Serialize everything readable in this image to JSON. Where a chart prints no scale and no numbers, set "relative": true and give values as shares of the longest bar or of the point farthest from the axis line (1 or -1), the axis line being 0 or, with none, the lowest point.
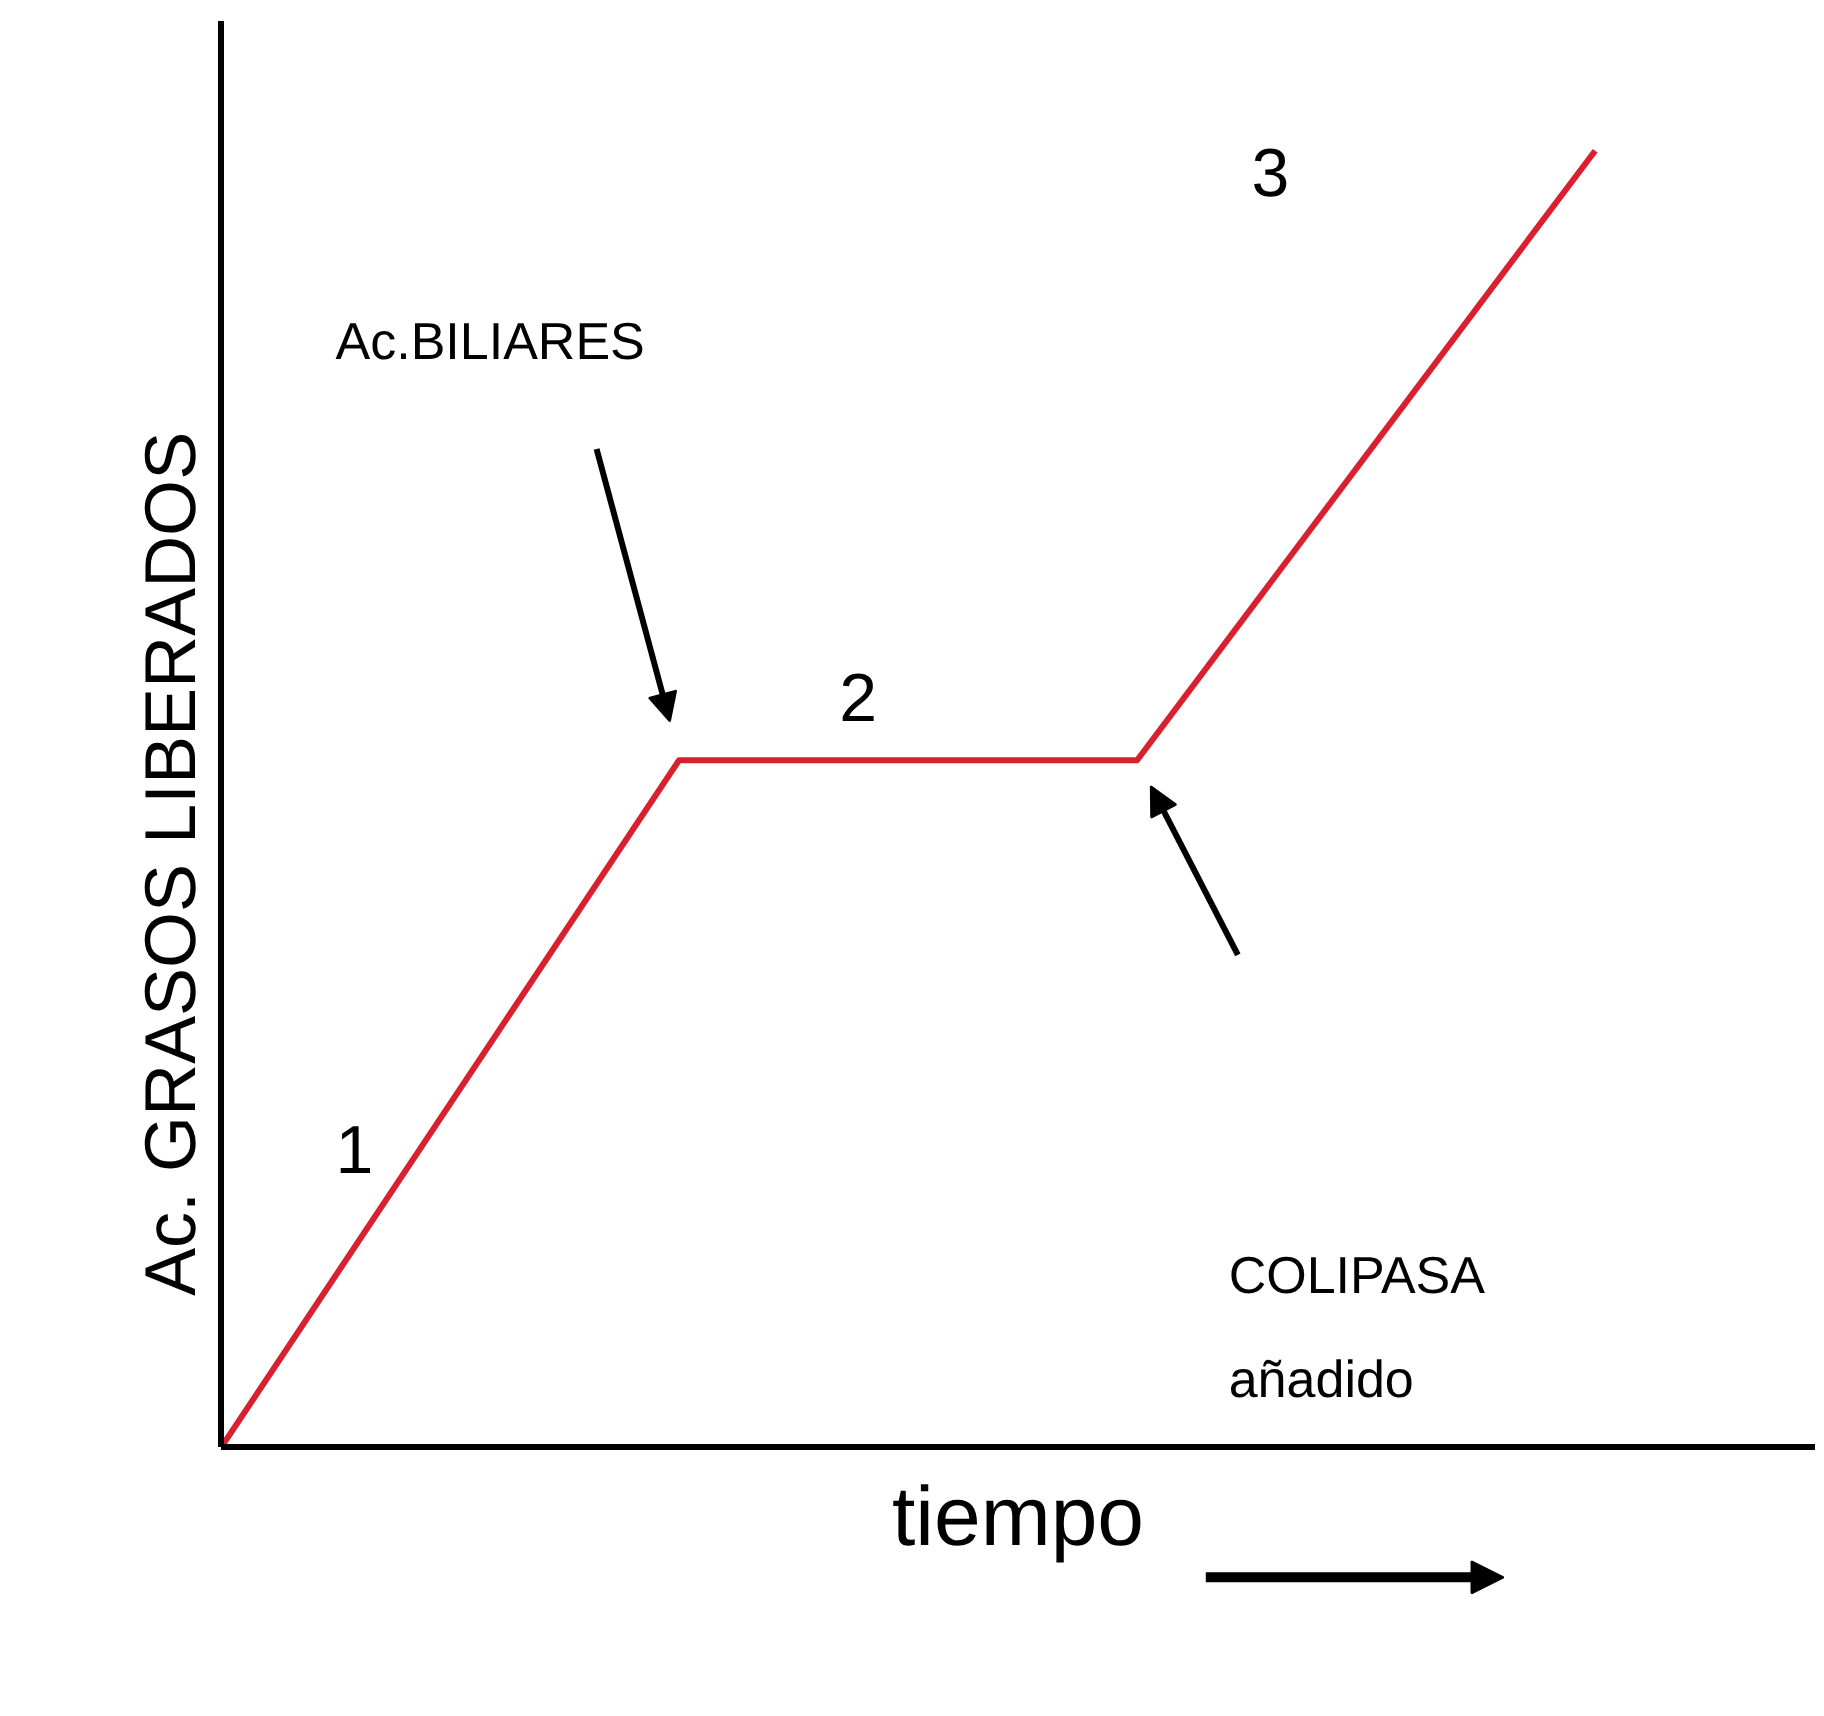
{
  "chart_data": {
    "type": "line",
    "relative": true,
    "xlabel": "tiempo",
    "ylabel": "Ac. GRASOS LIBERADOS",
    "categories": [
      null,
      null,
      null,
      null
    ],
    "series": [
      {
        "color": "#d9202e",
        "values": [
          0,
          0.53,
          0.53,
          1
        ]
      }
    ],
    "annotations": [
      "1",
      "2",
      "3",
      "Ac.BILIARES",
      "COLIPASA añadido"
    ],
    "grid": false,
    "marker": "none",
    "line_style": "solid"
  }
}
